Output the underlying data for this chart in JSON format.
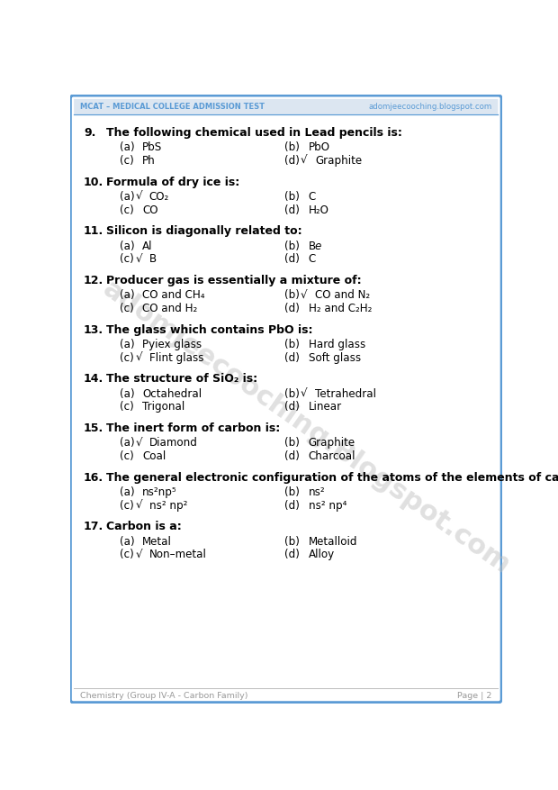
{
  "header_left": "MCAT – Medical College Admission Test",
  "header_right": "adomjeecooching.blogspot.com",
  "footer_left": "Chemistry (Group IV-A - Carbon Family)",
  "footer_right": "Page | 2",
  "watermark": "adomjeecooching.Blogspot.com",
  "bg_color": "#ffffff",
  "border_color": "#5b9bd5",
  "header_bg": "#dce6f1",
  "questions": [
    {
      "num": "9.",
      "text": "The following chemical used in Lead pencils is:",
      "options": [
        {
          "label": "(a)",
          "check": false,
          "text": "PbS",
          "italic_e": false
        },
        {
          "label": "(b)",
          "check": false,
          "text": "PbO",
          "italic_e": false
        },
        {
          "label": "(c)",
          "check": false,
          "text": "Ph",
          "italic_e": false
        },
        {
          "label": "(d)",
          "check": true,
          "text": "Graphite",
          "italic_e": false
        }
      ]
    },
    {
      "num": "10.",
      "text": "Formula of dry ice is:",
      "options": [
        {
          "label": "(a)",
          "check": true,
          "text": "CO₂",
          "italic_e": false
        },
        {
          "label": "(b)",
          "check": false,
          "text": "C",
          "italic_e": false
        },
        {
          "label": "(c)",
          "check": false,
          "text": "CO",
          "italic_e": false
        },
        {
          "label": "(d)",
          "check": false,
          "text": "H₂O",
          "italic_e": false
        }
      ]
    },
    {
      "num": "11.",
      "text": "Silicon is diagonally related to:",
      "options": [
        {
          "label": "(a)",
          "check": false,
          "text": "Al",
          "italic_e": false
        },
        {
          "label": "(b)",
          "check": false,
          "text": "B",
          "italic_e": true
        },
        {
          "label": "(c)",
          "check": true,
          "text": "B",
          "italic_e": false
        },
        {
          "label": "(d)",
          "check": false,
          "text": "C",
          "italic_e": false
        }
      ]
    },
    {
      "num": "12.",
      "text": "Producer gas is essentially a mixture of:",
      "options": [
        {
          "label": "(a)",
          "check": false,
          "text": "CO and CH₄",
          "italic_e": false
        },
        {
          "label": "(b)",
          "check": true,
          "text": "CO and N₂",
          "italic_e": false
        },
        {
          "label": "(c)",
          "check": false,
          "text": "CO and H₂",
          "italic_e": false
        },
        {
          "label": "(d)",
          "check": false,
          "text": "H₂ and C₂H₂",
          "italic_e": false
        }
      ]
    },
    {
      "num": "13.",
      "text": "The glass which contains PbO is:",
      "options": [
        {
          "label": "(a)",
          "check": false,
          "text": "Pyiex glass",
          "italic_e": false
        },
        {
          "label": "(b)",
          "check": false,
          "text": "Hard glass",
          "italic_e": false
        },
        {
          "label": "(c)",
          "check": true,
          "text": "Flint glass",
          "italic_e": false
        },
        {
          "label": "(d)",
          "check": false,
          "text": "Soft glass",
          "italic_e": false
        }
      ]
    },
    {
      "num": "14.",
      "text": "The structure of SiO₂ is:",
      "options": [
        {
          "label": "(a)",
          "check": false,
          "text": "Octahedral",
          "italic_e": false
        },
        {
          "label": "(b)",
          "check": true,
          "text": "Tetrahedral",
          "italic_e": false
        },
        {
          "label": "(c)",
          "check": false,
          "text": "Trigonal",
          "italic_e": false
        },
        {
          "label": "(d)",
          "check": false,
          "text": "Linear",
          "italic_e": false
        }
      ]
    },
    {
      "num": "15.",
      "text": "The inert form of carbon is:",
      "options": [
        {
          "label": "(a)",
          "check": true,
          "text": "Diamond",
          "italic_e": false
        },
        {
          "label": "(b)",
          "check": false,
          "text": "Graphite",
          "italic_e": false
        },
        {
          "label": "(c)",
          "check": false,
          "text": "Coal",
          "italic_e": false
        },
        {
          "label": "(d)",
          "check": false,
          "text": "Charcoal",
          "italic_e": false
        }
      ]
    },
    {
      "num": "16.",
      "text": "The general electronic configuration of the atoms of the elements of carbon family is:",
      "options": [
        {
          "label": "(a)",
          "check": false,
          "text": "ns²np⁵",
          "italic_e": false
        },
        {
          "label": "(b)",
          "check": false,
          "text": "ns²",
          "italic_e": false
        },
        {
          "label": "(c)",
          "check": true,
          "text": "ns² np²",
          "italic_e": false
        },
        {
          "label": "(d)",
          "check": false,
          "text": "ns² np⁴",
          "italic_e": false
        }
      ]
    },
    {
      "num": "17.",
      "text": "Carbon is a:",
      "options": [
        {
          "label": "(a)",
          "check": false,
          "text": "Metal",
          "italic_e": false
        },
        {
          "label": "(b)",
          "check": false,
          "text": "Metalloid",
          "italic_e": false
        },
        {
          "label": "(c)",
          "check": true,
          "text": "Non–metal",
          "italic_e": false
        },
        {
          "label": "(d)",
          "check": false,
          "text": "Alloy",
          "italic_e": false
        }
      ]
    }
  ]
}
